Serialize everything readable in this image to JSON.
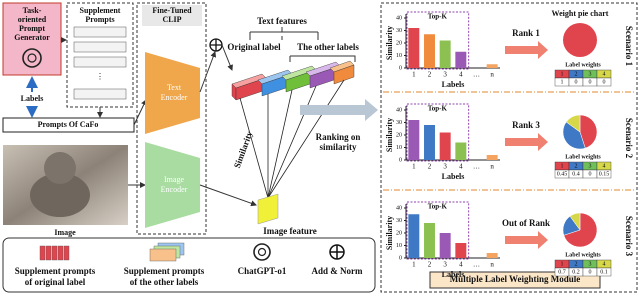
{
  "left": {
    "generator": [
      "Task-",
      "oriented",
      "Prompt",
      "Generator"
    ],
    "supplement_prompts": [
      "Supplement",
      "Prompts"
    ],
    "labels": "Labels",
    "prompts_of_cafo": "Prompts Of CaFo",
    "image": "Image"
  },
  "clip": {
    "title": [
      "Fine-Tuned",
      "CLIP"
    ],
    "text_encoder": [
      "Text",
      "Encoder"
    ],
    "image_encoder": [
      "Image",
      "Encoder"
    ]
  },
  "middle": {
    "text_features": "Text features",
    "original_label": "Original label",
    "other_labels": "The other labels",
    "similarity": "Similarity",
    "image_feature": "Image feature",
    "ranking": [
      "Ranking on",
      "similarity"
    ]
  },
  "legend": [
    {
      "lines": [
        "Supplement  prompts",
        "of original label"
      ]
    },
    {
      "lines": [
        "Supplement  prompts",
        "of the other labels"
      ]
    },
    {
      "lines": [
        "ChatGPT-o1"
      ]
    },
    {
      "lines": [
        "Add & Norm"
      ]
    }
  ],
  "module": {
    "title": "Multiple Label Weighting Module",
    "weight_pie": "Weight pie chart",
    "top_k": "Top-K",
    "y_label": "Similarity",
    "x_label": "Labels",
    "label_weights": "Label weights",
    "categories": [
      "1",
      "2",
      "3",
      "4",
      "…",
      "n"
    ],
    "ylim": [
      0,
      40
    ],
    "yticks": [
      0,
      10,
      20,
      30,
      40
    ],
    "weight_labels": [
      "1",
      "2",
      "3",
      "4"
    ],
    "label_colors": [
      "#e0454e",
      "#3f78c4",
      "#6fbf5a",
      "#d6d84a"
    ],
    "scenarios": [
      {
        "name": "Scenario 1",
        "rank": "Rank 1",
        "values": [
          32,
          27,
          22,
          13,
          null,
          3
        ],
        "colors": [
          "#e0454e",
          "#f08a3c",
          "#8cc152",
          "#9b59b6",
          null,
          "#f4a460"
        ],
        "weights": [
          1,
          0,
          0,
          0
        ]
      },
      {
        "name": "Scenario 2",
        "rank": "Rank 3",
        "values": [
          32,
          28,
          22,
          14,
          null,
          4
        ],
        "colors": [
          "#9b59b6",
          "#3f78c4",
          "#e0454e",
          "#8cc152",
          null,
          "#f4a460"
        ],
        "weights": [
          0.45,
          0.4,
          0,
          0.15
        ]
      },
      {
        "name": "Scenario 3",
        "rank": "Out of Rank",
        "values": [
          35,
          28,
          20,
          12,
          null,
          4
        ],
        "colors": [
          "#3f78c4",
          "#8cc152",
          "#9b59b6",
          "#e0454e",
          null,
          "#f4a460"
        ],
        "weights": [
          0.7,
          0.2,
          0,
          0.1
        ]
      }
    ]
  }
}
